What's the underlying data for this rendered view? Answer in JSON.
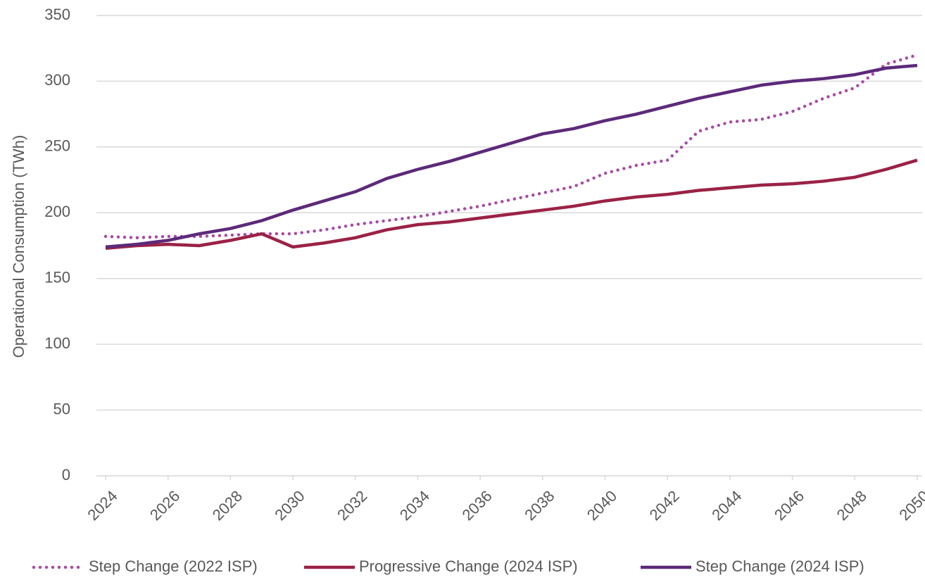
{
  "chart_data": {
    "type": "line",
    "y_label": "Operational Consumption (TWh)",
    "x": [
      2024,
      2025,
      2026,
      2027,
      2028,
      2029,
      2030,
      2031,
      2032,
      2033,
      2034,
      2035,
      2036,
      2037,
      2038,
      2039,
      2040,
      2041,
      2042,
      2043,
      2044,
      2045,
      2046,
      2047,
      2048,
      2049,
      2050
    ],
    "xlim": [
      2024,
      2050
    ],
    "xticks": [
      2024,
      2026,
      2028,
      2030,
      2032,
      2034,
      2036,
      2038,
      2040,
      2042,
      2044,
      2046,
      2048,
      2050
    ],
    "ylim": [
      0,
      350
    ],
    "yticks": [
      0,
      50,
      100,
      150,
      200,
      250,
      300,
      350
    ],
    "grid": true,
    "legend": "bottom",
    "series": [
      {
        "name": "Step Change (2022 ISP)",
        "color": "#a64ca6",
        "style": "dotted",
        "values": [
          182,
          181,
          182,
          182,
          183,
          184,
          184,
          187,
          191,
          194,
          197,
          201,
          205,
          210,
          215,
          220,
          230,
          236,
          240,
          262,
          269,
          271,
          277,
          287,
          295,
          313,
          320
        ]
      },
      {
        "name": "Progressive Change (2024 ISP)",
        "color": "#9b2246",
        "style": "solid",
        "values": [
          173,
          175,
          176,
          175,
          179,
          184,
          174,
          177,
          181,
          187,
          191,
          193,
          196,
          199,
          202,
          205,
          209,
          212,
          214,
          217,
          219,
          221,
          222,
          224,
          227,
          233,
          240
        ]
      },
      {
        "name": "Step Change (2024 ISP)",
        "color": "#5c2a7a",
        "style": "solid",
        "values": [
          174,
          176,
          179,
          184,
          188,
          194,
          202,
          209,
          216,
          226,
          233,
          239,
          246,
          253,
          260,
          264,
          270,
          275,
          281,
          287,
          292,
          297,
          300,
          302,
          305,
          310,
          312
        ]
      }
    ]
  }
}
